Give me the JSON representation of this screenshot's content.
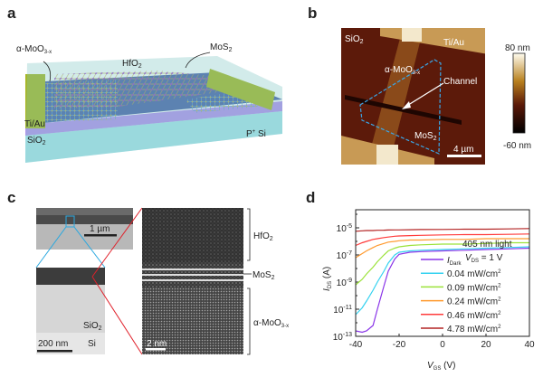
{
  "panels": {
    "a": {
      "label": "a",
      "layers": {
        "moo3": "α-MoO",
        "moo3_sub": "3-x",
        "hfo2": "HfO",
        "hfo2_sub": "2",
        "mos2": "MoS",
        "mos2_sub": "2",
        "tiau": "Ti/Au",
        "sio2": "SiO",
        "sio2_sub": "2",
        "si": "P",
        "si_sup": "+",
        "si_tail": " Si"
      },
      "colors": {
        "si": "#a9e3ec",
        "sio2": "#b58ef0",
        "hfo2": "#7fc7c4",
        "surface": "#4a5fa8",
        "electrode": "#a8b51e"
      }
    },
    "b": {
      "label": "b",
      "sio2": "SiO",
      "sio2_sub": "2",
      "tiau": "Ti/Au",
      "moo3": "α-MoO",
      "moo3_sub": "3-x",
      "channel": "Channel",
      "mos2": "MoS",
      "mos2_sub": "2",
      "scalebar": "4 µm",
      "colorbar_max": "80 nm",
      "colorbar_min": "-60 nm"
    },
    "c": {
      "label": "c",
      "scale_top": "1 µm",
      "sio2": "SiO",
      "sio2_sub": "2",
      "si": "Si",
      "scale_bottom": "200 nm",
      "scale_hrtem": "2 nm",
      "hfo2": "HfO",
      "hfo2_sub": "2",
      "mos2": "MoS",
      "mos2_sub": "2",
      "moo3": "α-MoO",
      "moo3_sub": "3-x"
    },
    "d": {
      "label": "d"
    }
  },
  "chart_data": {
    "type": "line",
    "title": "",
    "xlabel": "V",
    "xlabel_sub": "GS",
    "xlabel_unit": " (V)",
    "ylabel": "I",
    "ylabel_sub": "DS",
    "ylabel_unit": " (A)",
    "xlim": [
      -40,
      40
    ],
    "ylim": [
      1e-13,
      0.0001
    ],
    "yscale": "log",
    "xticks": [
      "-40",
      "-20",
      "0",
      "20",
      "40"
    ],
    "yticks": [
      {
        "base": "10",
        "exp": "-5",
        "value": 1e-05
      },
      {
        "base": "10",
        "exp": "-7",
        "value": 1e-07
      },
      {
        "base": "10",
        "exp": "-9",
        "value": 1e-09
      },
      {
        "base": "10",
        "exp": "-11",
        "value": 1e-11
      },
      {
        "base": "10",
        "exp": "-13",
        "value": 1e-13
      }
    ],
    "annotation1": "405 nm light",
    "annotation2_main": "V",
    "annotation2_sub": "DS",
    "annotation2_tail": " = 1 V",
    "legend_position": "right",
    "x": [
      -40,
      -37,
      -35,
      -32,
      -30,
      -27,
      -25,
      -22,
      -20,
      -15,
      -10,
      0,
      10,
      20,
      30,
      40
    ],
    "series": [
      {
        "name": "I",
        "name_sub": "Dark",
        "color": "#8a35e8",
        "log10": [
          -12.6,
          -12.7,
          -12.6,
          -12.2,
          -11.0,
          -9.3,
          -8.2,
          -7.3,
          -6.95,
          -6.8,
          -6.75,
          -6.7,
          -6.65,
          -6.6,
          -6.55,
          -6.5
        ]
      },
      {
        "name": "0.04 mW/cm",
        "sup": "2",
        "color": "#35d2f0",
        "log10": [
          -11.4,
          -10.9,
          -10.4,
          -9.6,
          -9.0,
          -8.2,
          -7.6,
          -7.0,
          -6.8,
          -6.7,
          -6.65,
          -6.6,
          -6.55,
          -6.5,
          -6.45,
          -6.4
        ]
      },
      {
        "name": "0.09 mW/cm",
        "sup": "2",
        "color": "#9be23a",
        "log10": [
          -9.2,
          -8.8,
          -8.4,
          -7.9,
          -7.5,
          -7.0,
          -6.7,
          -6.5,
          -6.4,
          -6.3,
          -6.25,
          -6.2,
          -6.2,
          -6.15,
          -6.1,
          -6.1
        ]
      },
      {
        "name": "0.24 mW/cm",
        "sup": "2",
        "color": "#ff9a2e",
        "log10": [
          -7.2,
          -6.9,
          -6.7,
          -6.45,
          -6.3,
          -6.15,
          -6.05,
          -6.0,
          -5.95,
          -5.9,
          -5.9,
          -5.85,
          -5.85,
          -5.8,
          -5.8,
          -5.8
        ]
      },
      {
        "name": "0.46 mW/cm",
        "sup": "2",
        "color": "#ff3b3b",
        "log10": [
          -6.3,
          -6.1,
          -6.0,
          -5.85,
          -5.8,
          -5.72,
          -5.68,
          -5.62,
          -5.6,
          -5.57,
          -5.55,
          -5.52,
          -5.5,
          -5.5,
          -5.48,
          -5.45
        ]
      },
      {
        "name": "4.78 mW/cm",
        "sup": "2",
        "color": "#b32424",
        "log10": [
          -5.25,
          -5.22,
          -5.2,
          -5.2,
          -5.18,
          -5.17,
          -5.16,
          -5.15,
          -5.15,
          -5.14,
          -5.13,
          -5.12,
          -5.1,
          -5.1,
          -5.08,
          -5.05
        ]
      }
    ]
  }
}
